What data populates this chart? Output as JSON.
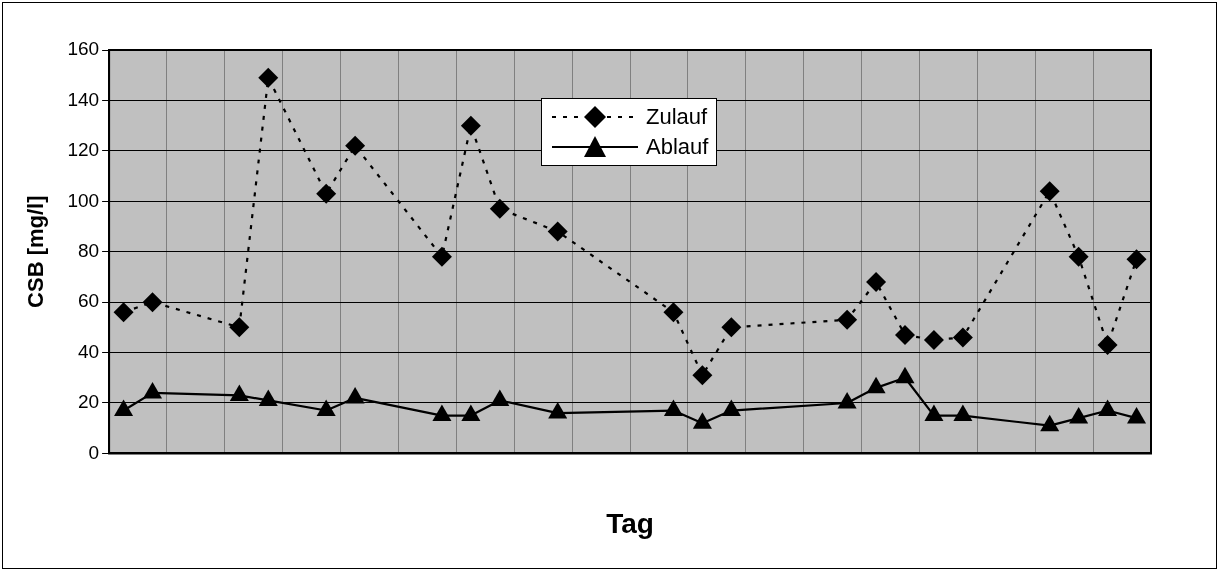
{
  "chart_data": {
    "type": "line",
    "xlabel": "Tag",
    "ylabel": "CSB [mg/l]",
    "categories": [
      null,
      null,
      null,
      null,
      null,
      null,
      null,
      null,
      null,
      null,
      null,
      null,
      null,
      null,
      null,
      null,
      null,
      null,
      null,
      null,
      null,
      null,
      null,
      null,
      null,
      null,
      null,
      null,
      null,
      null,
      null,
      null,
      null,
      null,
      null,
      null
    ],
    "series": [
      {
        "name": "Zulauf",
        "color": "#000000",
        "marker": "diamond",
        "line_style": "dotted",
        "values": [
          56,
          60,
          null,
          null,
          50,
          149,
          null,
          103,
          122,
          null,
          null,
          78,
          130,
          97,
          null,
          88,
          null,
          null,
          null,
          56,
          31,
          50,
          null,
          null,
          null,
          53,
          68,
          47,
          45,
          46,
          null,
          null,
          104,
          78,
          43,
          77
        ]
      },
      {
        "name": "Ablauf",
        "color": "#000000",
        "marker": "triangle",
        "line_style": "solid",
        "values": [
          17,
          24,
          null,
          null,
          23,
          21,
          null,
          17,
          22,
          null,
          null,
          15,
          15,
          21,
          null,
          16,
          null,
          null,
          null,
          17,
          12,
          17,
          null,
          null,
          null,
          20,
          26,
          30,
          15,
          15,
          null,
          null,
          11,
          14,
          17,
          14
        ]
      }
    ],
    "ylim": [
      0,
      160
    ],
    "yticks": [
      0,
      20,
      40,
      60,
      80,
      100,
      120,
      140,
      160
    ],
    "grid": true,
    "legend": "top",
    "tick_labels": "y"
  }
}
